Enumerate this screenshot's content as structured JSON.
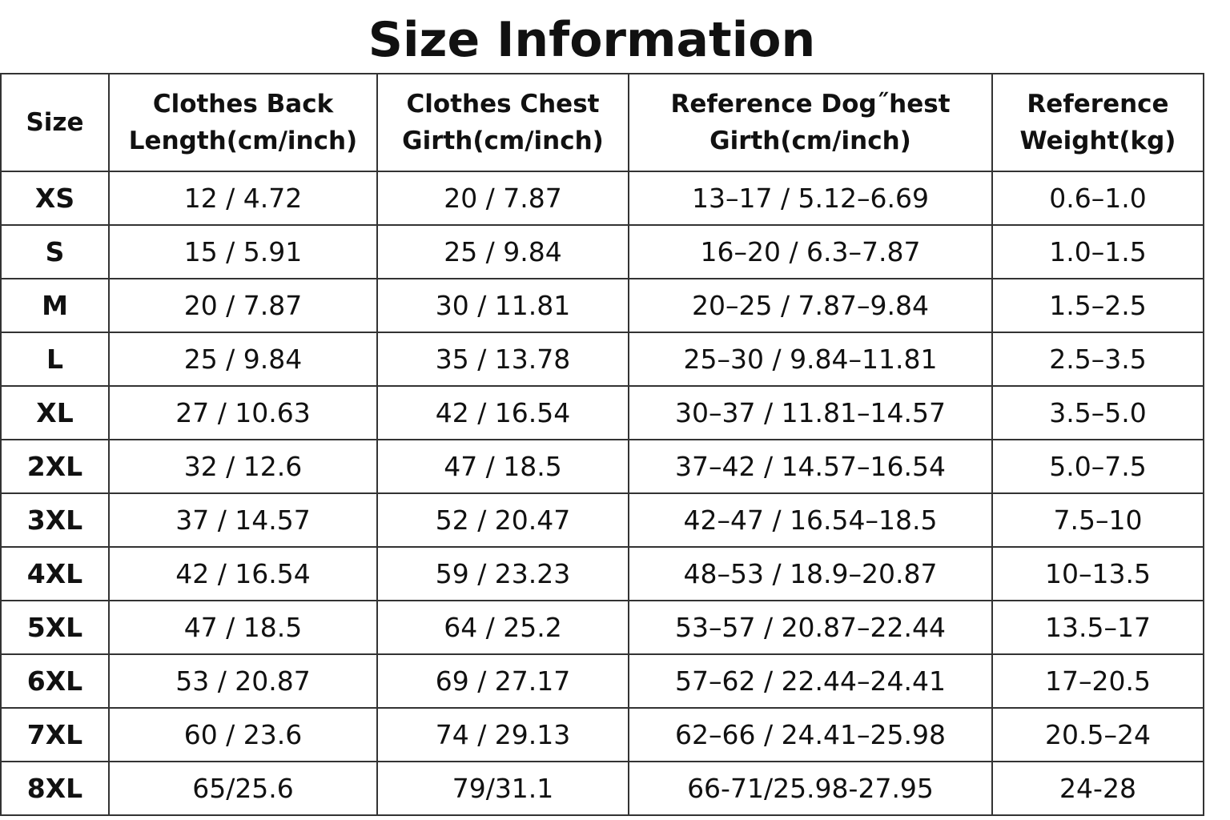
{
  "header": {
    "title": "Size Information"
  },
  "table": {
    "columns": [
      [
        "Size"
      ],
      [
        "Clothes Back",
        "Length(cm/inch)"
      ],
      [
        "Clothes Chest",
        "Girth(cm/inch)"
      ],
      [
        "Reference Dog˝hest",
        "Girth(cm/inch)"
      ],
      [
        "Reference",
        "Weight(kg)"
      ]
    ],
    "rows": [
      [
        "XS",
        "12 / 4.72",
        "20 / 7.87",
        "13–17 / 5.12–6.69",
        "0.6–1.0"
      ],
      [
        "S",
        "15 / 5.91",
        "25 / 9.84",
        "16–20 / 6.3–7.87",
        "1.0–1.5"
      ],
      [
        "M",
        "20 / 7.87",
        "30 / 11.81",
        "20–25 / 7.87–9.84",
        "1.5–2.5"
      ],
      [
        "L",
        "25 / 9.84",
        "35 / 13.78",
        "25–30 / 9.84–11.81",
        "2.5–3.5"
      ],
      [
        "XL",
        "27 / 10.63",
        "42 / 16.54",
        "30–37 / 11.81–14.57",
        "3.5–5.0"
      ],
      [
        "2XL",
        "32 / 12.6",
        "47 / 18.5",
        "37–42 / 14.57–16.54",
        "5.0–7.5"
      ],
      [
        "3XL",
        "37 / 14.57",
        "52 / 20.47",
        "42–47 / 16.54–18.5",
        "7.5–10"
      ],
      [
        "4XL",
        "42 / 16.54",
        "59 / 23.23",
        "48–53 / 18.9–20.87",
        "10–13.5"
      ],
      [
        "5XL",
        "47 / 18.5",
        "64 / 25.2",
        "53–57 / 20.87–22.44",
        "13.5–17"
      ],
      [
        "6XL",
        "53 / 20.87",
        "69 / 27.17",
        "57–62 / 22.44–24.41",
        "17–20.5"
      ],
      [
        "7XL",
        "60 / 23.6",
        "74 / 29.13",
        "62–66 / 24.41–25.98",
        "20.5–24"
      ],
      [
        "8XL",
        "65/25.6",
        "79/31.1",
        "66-71/25.98-27.95",
        "24-28"
      ]
    ]
  }
}
